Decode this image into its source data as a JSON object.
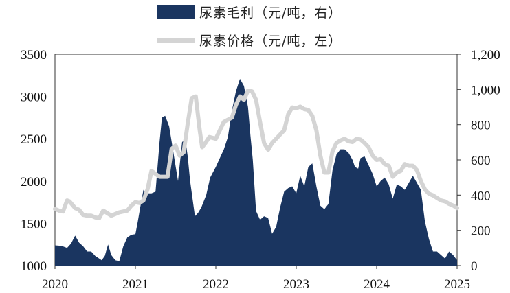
{
  "chart_data": {
    "type": "area+line",
    "legend": [
      {
        "name": "尿素毛利（元/吨，右）",
        "style": "area",
        "color": "#1a3560"
      },
      {
        "name": "尿素价格（元/吨，左）",
        "style": "line",
        "color": "#d4d4d4"
      }
    ],
    "x_ticks": [
      "2020",
      "2021",
      "2022",
      "2023",
      "2024",
      "2025"
    ],
    "xlim": [
      2020,
      2025
    ],
    "y_left": {
      "ticks": [
        "1000",
        "1500",
        "2000",
        "2500",
        "3000",
        "3500"
      ],
      "lim": [
        1000,
        3500
      ]
    },
    "y_right": {
      "ticks": [
        "0",
        "200",
        "400",
        "600",
        "800",
        "1,000",
        "1,200"
      ],
      "lim": [
        0,
        1200
      ]
    },
    "series": [
      {
        "name": "尿素毛利（元/吨，右）",
        "axis": "right",
        "x": [
          2020.0,
          2020.08,
          2020.15,
          2020.2,
          2020.25,
          2020.3,
          2020.35,
          2020.4,
          2020.45,
          2020.5,
          2020.55,
          2020.58,
          2020.62,
          2020.66,
          2020.7,
          2020.75,
          2020.8,
          2020.85,
          2020.9,
          2020.95,
          2021.0,
          2021.03,
          2021.06,
          2021.1,
          2021.15,
          2021.2,
          2021.25,
          2021.3,
          2021.33,
          2021.37,
          2021.42,
          2021.48,
          2021.53,
          2021.58,
          2021.62,
          2021.65,
          2021.68,
          2021.74,
          2021.78,
          2021.82,
          2021.88,
          2021.93,
          2022.0,
          2022.05,
          2022.1,
          2022.15,
          2022.2,
          2022.25,
          2022.3,
          2022.35,
          2022.4,
          2022.43,
          2022.46,
          2022.5,
          2022.55,
          2022.6,
          2022.65,
          2022.7,
          2022.75,
          2022.8,
          2022.85,
          2022.9,
          2022.95,
          2023.0,
          2023.05,
          2023.1,
          2023.15,
          2023.2,
          2023.25,
          2023.3,
          2023.35,
          2023.4,
          2023.45,
          2023.5,
          2023.55,
          2023.6,
          2023.65,
          2023.7,
          2023.73,
          2023.77,
          2023.8,
          2023.85,
          2023.9,
          2023.95,
          2024.0,
          2024.05,
          2024.1,
          2024.15,
          2024.2,
          2024.25,
          2024.3,
          2024.35,
          2024.4,
          2024.45,
          2024.5,
          2024.55,
          2024.6,
          2024.65,
          2024.7,
          2024.75,
          2024.8,
          2024.85,
          2024.9,
          2024.95,
          2025.0
        ],
        "values": [
          115,
          112,
          100,
          125,
          170,
          130,
          110,
          80,
          80,
          55,
          40,
          30,
          55,
          120,
          60,
          30,
          25,
          110,
          160,
          175,
          178,
          250,
          330,
          430,
          410,
          410,
          420,
          700,
          840,
          850,
          790,
          620,
          480,
          700,
          720,
          620,
          480,
          280,
          300,
          330,
          400,
          500,
          560,
          610,
          660,
          730,
          880,
          990,
          1060,
          1020,
          900,
          740,
          600,
          310,
          260,
          280,
          270,
          180,
          220,
          330,
          420,
          440,
          450,
          410,
          510,
          450,
          560,
          580,
          450,
          340,
          320,
          350,
          540,
          630,
          660,
          660,
          640,
          600,
          560,
          550,
          610,
          620,
          570,
          520,
          450,
          480,
          500,
          460,
          380,
          460,
          450,
          430,
          470,
          510,
          470,
          430,
          250,
          150,
          80,
          80,
          60,
          40,
          80,
          60,
          30
        ]
      },
      {
        "name": "尿素价格（元/吨，左）",
        "axis": "left",
        "x": [
          2020.0,
          2020.05,
          2020.1,
          2020.15,
          2020.18,
          2020.25,
          2020.3,
          2020.35,
          2020.4,
          2020.45,
          2020.5,
          2020.55,
          2020.6,
          2020.65,
          2020.7,
          2020.8,
          2020.9,
          2020.95,
          2021.0,
          2021.05,
          2021.1,
          2021.15,
          2021.2,
          2021.3,
          2021.4,
          2021.45,
          2021.5,
          2021.55,
          2021.6,
          2021.65,
          2021.7,
          2021.75,
          2021.8,
          2021.83,
          2021.87,
          2021.92,
          2022.0,
          2022.05,
          2022.1,
          2022.2,
          2022.25,
          2022.3,
          2022.35,
          2022.4,
          2022.45,
          2022.5,
          2022.55,
          2022.6,
          2022.65,
          2022.7,
          2022.75,
          2022.8,
          2022.85,
          2022.9,
          2022.95,
          2023.0,
          2023.05,
          2023.1,
          2023.15,
          2023.2,
          2023.25,
          2023.3,
          2023.35,
          2023.4,
          2023.45,
          2023.5,
          2023.55,
          2023.6,
          2023.65,
          2023.7,
          2023.75,
          2023.8,
          2023.85,
          2023.9,
          2023.95,
          2024.0,
          2024.05,
          2024.1,
          2024.15,
          2024.2,
          2024.25,
          2024.3,
          2024.35,
          2024.4,
          2024.45,
          2024.5,
          2024.55,
          2024.6,
          2024.65,
          2024.7,
          2024.75,
          2024.8,
          2024.85,
          2024.9,
          2024.95,
          2025.0
        ],
        "values": [
          1670,
          1650,
          1640,
          1770,
          1760,
          1680,
          1660,
          1600,
          1590,
          1590,
          1570,
          1560,
          1650,
          1620,
          1590,
          1630,
          1650,
          1710,
          1750,
          1740,
          1770,
          1900,
          2120,
          2050,
          2050,
          2380,
          2420,
          2300,
          2340,
          2680,
          2980,
          3000,
          2600,
          2400,
          2450,
          2520,
          2500,
          2600,
          2700,
          2750,
          2900,
          3000,
          2960,
          3070,
          3060,
          2960,
          2700,
          2450,
          2370,
          2450,
          2500,
          2550,
          2600,
          2790,
          2870,
          2860,
          2880,
          2850,
          2840,
          2770,
          2600,
          2300,
          2100,
          2100,
          2350,
          2450,
          2480,
          2500,
          2470,
          2460,
          2500,
          2490,
          2450,
          2400,
          2300,
          2250,
          2260,
          2200,
          2180,
          2050,
          2100,
          2120,
          2200,
          2180,
          2180,
          2130,
          2000,
          1900,
          1850,
          1830,
          1800,
          1770,
          1760,
          1730,
          1710,
          1680
        ]
      }
    ]
  }
}
